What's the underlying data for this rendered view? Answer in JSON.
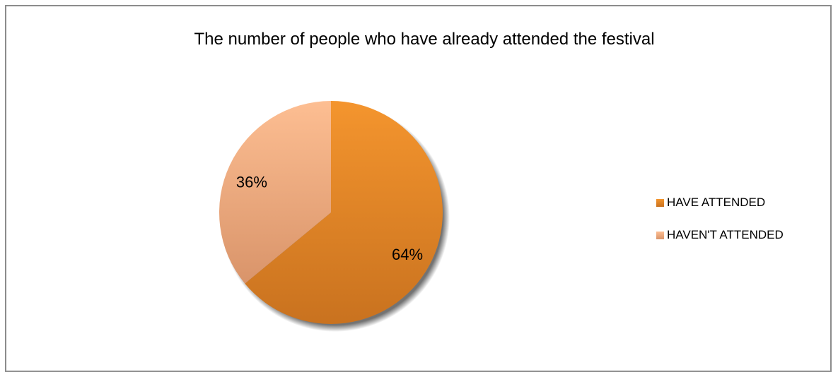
{
  "chart_data": {
    "type": "pie",
    "title": "The number of people who have already attended the festival",
    "slices": [
      {
        "label": "HAVE ATTENDED",
        "value": 64,
        "display": "64%",
        "color": "#e8892a"
      },
      {
        "label": "HAVEN'T ATTENDED",
        "value": 36,
        "display": "36%",
        "color": "#f1b58c"
      }
    ],
    "legend_position": "right"
  }
}
